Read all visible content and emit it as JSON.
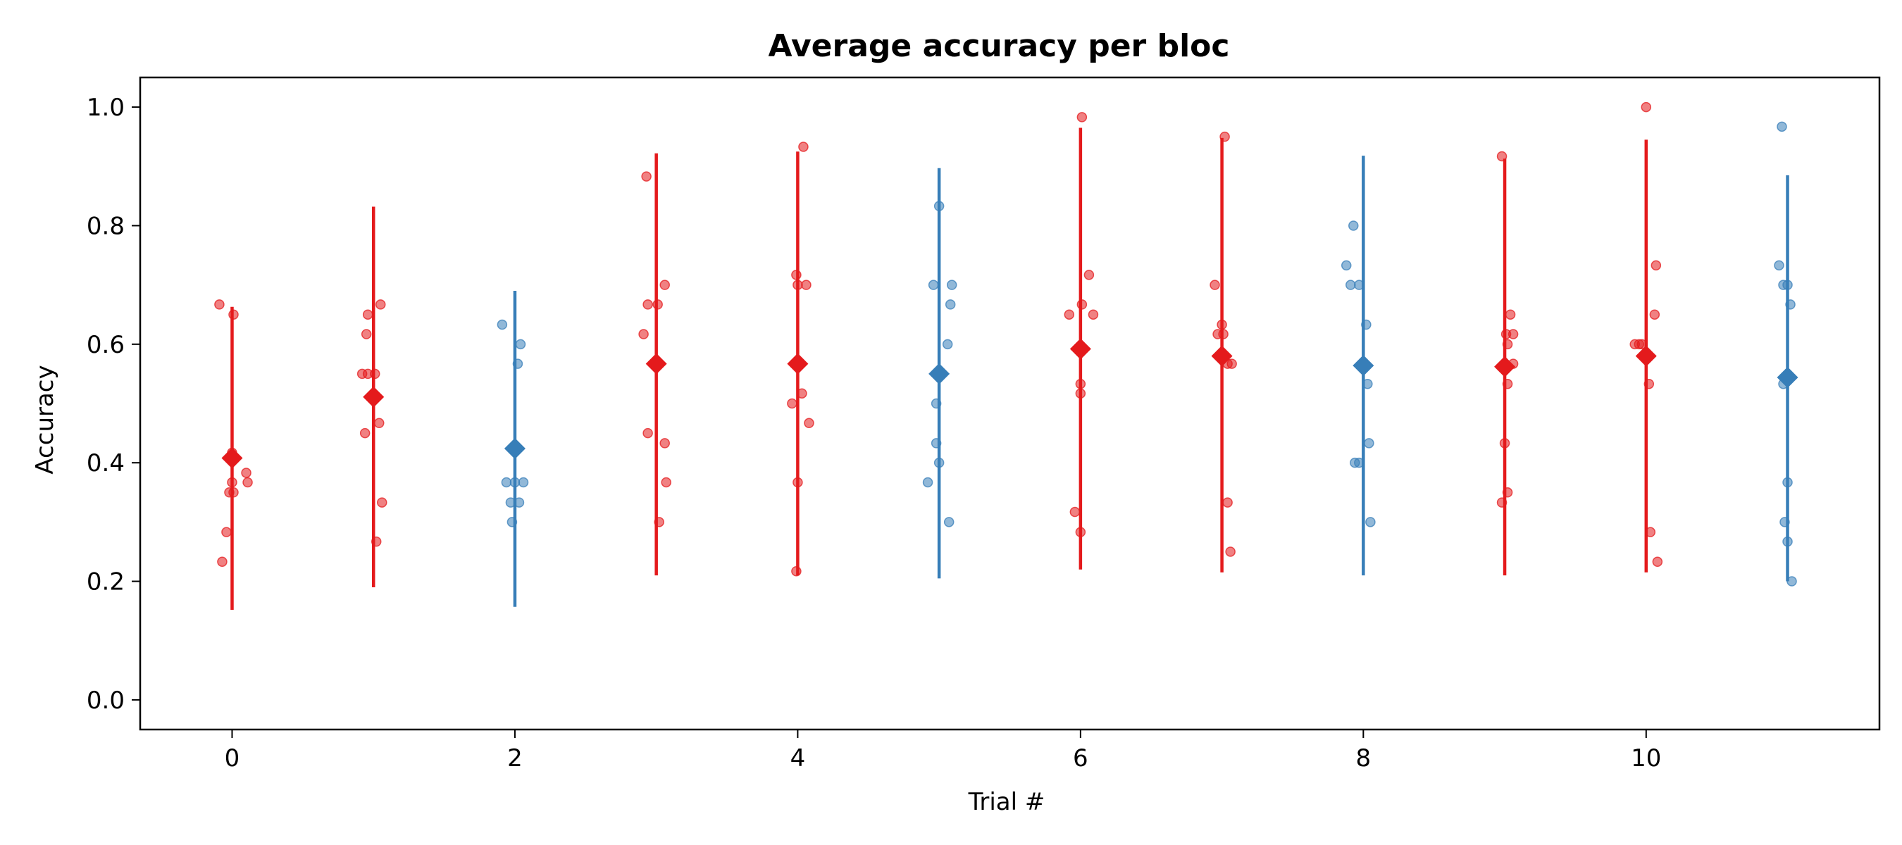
{
  "chart_data": {
    "type": "scatter",
    "title": "Average accuracy per bloc",
    "xlabel": "Trial #",
    "ylabel": "Accuracy",
    "xlim": [
      -0.65,
      11.65
    ],
    "ylim": [
      -0.05,
      1.05
    ],
    "xticks": [
      0,
      2,
      4,
      6,
      8,
      10
    ],
    "yticks": [
      0.0,
      0.2,
      0.4,
      0.6,
      0.8,
      1.0
    ],
    "ytick_labels": [
      "0.0",
      "0.2",
      "0.4",
      "0.6",
      "0.8",
      "1.0"
    ],
    "grid": false,
    "colors": {
      "red": "#e41a1c",
      "blue": "#377eb8"
    },
    "trials": [
      {
        "x": 0,
        "color": "red",
        "mean": 0.408,
        "err_low": 0.152,
        "err_high": 0.663,
        "points": [
          [
            -0.09,
            0.667
          ],
          [
            0.01,
            0.65
          ],
          [
            0.0,
            0.417
          ],
          [
            -0.02,
            0.408
          ],
          [
            0.1,
            0.383
          ],
          [
            0.11,
            0.367
          ],
          [
            0.0,
            0.367
          ],
          [
            0.01,
            0.35
          ],
          [
            -0.02,
            0.35
          ],
          [
            -0.04,
            0.283
          ],
          [
            -0.07,
            0.233
          ]
        ]
      },
      {
        "x": 1,
        "color": "red",
        "mean": 0.511,
        "err_low": 0.19,
        "err_high": 0.832,
        "points": [
          [
            -0.04,
            0.65
          ],
          [
            0.05,
            0.667
          ],
          [
            -0.05,
            0.617
          ],
          [
            -0.08,
            0.55
          ],
          [
            -0.04,
            0.55
          ],
          [
            0.01,
            0.55
          ],
          [
            -0.06,
            0.45
          ],
          [
            0.04,
            0.467
          ],
          [
            0.06,
            0.333
          ],
          [
            0.02,
            0.267
          ]
        ]
      },
      {
        "x": 2,
        "color": "blue",
        "mean": 0.424,
        "err_low": 0.157,
        "err_high": 0.69,
        "points": [
          [
            -0.09,
            0.633
          ],
          [
            0.04,
            0.6
          ],
          [
            0.02,
            0.567
          ],
          [
            -0.06,
            0.367
          ],
          [
            0.0,
            0.367
          ],
          [
            0.06,
            0.367
          ],
          [
            -0.03,
            0.333
          ],
          [
            0.03,
            0.333
          ],
          [
            -0.02,
            0.3
          ]
        ]
      },
      {
        "x": 3,
        "color": "red",
        "mean": 0.567,
        "err_low": 0.21,
        "err_high": 0.922,
        "points": [
          [
            -0.07,
            0.883
          ],
          [
            0.06,
            0.7
          ],
          [
            -0.06,
            0.667
          ],
          [
            0.01,
            0.667
          ],
          [
            -0.09,
            0.617
          ],
          [
            -0.06,
            0.45
          ],
          [
            0.06,
            0.433
          ],
          [
            0.07,
            0.367
          ],
          [
            0.02,
            0.3
          ]
        ]
      },
      {
        "x": 4,
        "color": "red",
        "mean": 0.567,
        "err_low": 0.21,
        "err_high": 0.925,
        "points": [
          [
            0.04,
            0.933
          ],
          [
            -0.01,
            0.717
          ],
          [
            0.0,
            0.7
          ],
          [
            0.06,
            0.7
          ],
          [
            -0.04,
            0.5
          ],
          [
            0.03,
            0.517
          ],
          [
            0.08,
            0.467
          ],
          [
            0.0,
            0.367
          ],
          [
            -0.01,
            0.217
          ]
        ]
      },
      {
        "x": 5,
        "color": "blue",
        "mean": 0.55,
        "err_low": 0.205,
        "err_high": 0.897,
        "points": [
          [
            0.0,
            0.833
          ],
          [
            -0.04,
            0.7
          ],
          [
            0.09,
            0.7
          ],
          [
            0.08,
            0.667
          ],
          [
            0.06,
            0.6
          ],
          [
            -0.02,
            0.5
          ],
          [
            -0.02,
            0.433
          ],
          [
            0.0,
            0.4
          ],
          [
            -0.08,
            0.367
          ],
          [
            0.07,
            0.3
          ]
        ]
      },
      {
        "x": 6,
        "color": "red",
        "mean": 0.592,
        "err_low": 0.22,
        "err_high": 0.965,
        "points": [
          [
            0.01,
            0.983
          ],
          [
            0.06,
            0.717
          ],
          [
            0.01,
            0.667
          ],
          [
            -0.08,
            0.65
          ],
          [
            0.09,
            0.65
          ],
          [
            0.0,
            0.533
          ],
          [
            0.0,
            0.517
          ],
          [
            -0.04,
            0.317
          ],
          [
            0.0,
            0.283
          ]
        ]
      },
      {
        "x": 7,
        "color": "red",
        "mean": 0.58,
        "err_low": 0.215,
        "err_high": 0.948,
        "points": [
          [
            0.02,
            0.95
          ],
          [
            -0.05,
            0.7
          ],
          [
            0.0,
            0.633
          ],
          [
            -0.03,
            0.617
          ],
          [
            0.01,
            0.617
          ],
          [
            0.07,
            0.567
          ],
          [
            0.04,
            0.567
          ],
          [
            0.04,
            0.333
          ],
          [
            0.06,
            0.25
          ]
        ]
      },
      {
        "x": 8,
        "color": "blue",
        "mean": 0.564,
        "err_low": 0.21,
        "err_high": 0.918,
        "points": [
          [
            -0.07,
            0.8
          ],
          [
            -0.12,
            0.733
          ],
          [
            -0.09,
            0.7
          ],
          [
            -0.03,
            0.7
          ],
          [
            0.02,
            0.633
          ],
          [
            0.03,
            0.533
          ],
          [
            0.04,
            0.433
          ],
          [
            -0.06,
            0.4
          ],
          [
            -0.03,
            0.4
          ],
          [
            0.05,
            0.3
          ]
        ]
      },
      {
        "x": 9,
        "color": "red",
        "mean": 0.562,
        "err_low": 0.21,
        "err_high": 0.913,
        "points": [
          [
            -0.02,
            0.917
          ],
          [
            0.04,
            0.65
          ],
          [
            0.01,
            0.617
          ],
          [
            0.06,
            0.617
          ],
          [
            0.02,
            0.6
          ],
          [
            0.06,
            0.567
          ],
          [
            0.02,
            0.533
          ],
          [
            0.0,
            0.433
          ],
          [
            0.02,
            0.35
          ],
          [
            -0.02,
            0.333
          ]
        ]
      },
      {
        "x": 10,
        "color": "red",
        "mean": 0.58,
        "err_low": 0.215,
        "err_high": 0.945,
        "points": [
          [
            0.0,
            1.0
          ],
          [
            0.07,
            0.733
          ],
          [
            0.06,
            0.65
          ],
          [
            -0.08,
            0.6
          ],
          [
            -0.05,
            0.6
          ],
          [
            -0.03,
            0.6
          ],
          [
            0.02,
            0.533
          ],
          [
            0.03,
            0.283
          ],
          [
            0.08,
            0.233
          ]
        ]
      },
      {
        "x": 11,
        "color": "blue",
        "mean": 0.544,
        "err_low": 0.2,
        "err_high": 0.885,
        "points": [
          [
            -0.04,
            0.967
          ],
          [
            -0.06,
            0.733
          ],
          [
            -0.03,
            0.7
          ],
          [
            0.0,
            0.7
          ],
          [
            0.02,
            0.667
          ],
          [
            -0.03,
            0.533
          ],
          [
            0.0,
            0.367
          ],
          [
            -0.02,
            0.3
          ],
          [
            0.0,
            0.267
          ],
          [
            0.03,
            0.2
          ]
        ]
      }
    ]
  }
}
